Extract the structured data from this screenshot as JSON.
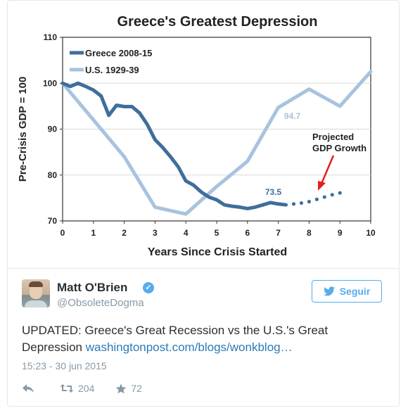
{
  "tweet": {
    "author_name": "Matt O'Brien",
    "handle": "@ObsoleteDogma",
    "follow_label": "Seguir",
    "text_before": "UPDATED: Greece's Great Recession vs the U.S.'s Great Depression ",
    "link_text": "washingtonpost.com/blogs/wonkblog…",
    "timestamp": "15:23 - 30 jun 2015",
    "retweet_count": "204",
    "like_count": "72"
  },
  "colors": {
    "greece": "#3f6e9a",
    "us": "#a7c3df",
    "twitter_blue": "#55acee",
    "arrow": "#e02020"
  },
  "icons": [
    "verified-icon",
    "bird-icon",
    "reply-icon",
    "retweet-icon",
    "star-icon"
  ],
  "chart_data": {
    "type": "line",
    "title": "Greece's Greatest Depression",
    "xlabel": "Years Since Crisis Started",
    "ylabel": "Pre-Crisis GDP = 100",
    "xlim": [
      0,
      10
    ],
    "ylim": [
      70,
      110
    ],
    "xticks": [
      0,
      1,
      2,
      3,
      4,
      5,
      6,
      7,
      8,
      9,
      10
    ],
    "yticks": [
      70,
      80,
      90,
      100,
      110
    ],
    "legend_position": "top-left",
    "series": [
      {
        "name": "Greece 2008-15",
        "x": [
          0,
          0.25,
          0.5,
          0.75,
          1.0,
          1.25,
          1.5,
          1.75,
          2.0,
          2.25,
          2.5,
          2.75,
          3.0,
          3.25,
          3.5,
          3.75,
          4.0,
          4.25,
          4.5,
          4.75,
          5.0,
          5.25,
          5.5,
          5.75,
          6.0,
          6.25,
          6.5,
          6.75,
          7.0,
          7.25
        ],
        "values": [
          100,
          99.3,
          100,
          99.3,
          98.5,
          97.2,
          93.0,
          95.2,
          94.9,
          94.9,
          93.5,
          91.0,
          87.7,
          86.0,
          84.0,
          81.8,
          78.7,
          77.8,
          76.3,
          75.2,
          74.6,
          73.5,
          73.2,
          73.0,
          72.7,
          73.0,
          73.5,
          74.0,
          73.7,
          73.5
        ]
      },
      {
        "name": "U.S. 1929-39",
        "x": [
          0,
          1,
          2,
          3,
          4,
          5,
          6,
          7,
          8,
          9,
          10
        ],
        "values": [
          100,
          92,
          84,
          73,
          71.5,
          77.5,
          83,
          94.7,
          98.7,
          95,
          102.5
        ]
      },
      {
        "name": "Projected GDP Growth",
        "x": [
          7.5,
          7.75,
          8.0,
          8.25,
          8.5,
          8.75,
          9.0
        ],
        "values": [
          73.7,
          73.9,
          74.2,
          74.7,
          75.2,
          75.7,
          76.1
        ]
      }
    ],
    "annotations": [
      {
        "text": "94.7",
        "x": 7,
        "y": 94.7
      },
      {
        "text": "73.5",
        "x": 7.25,
        "y": 73.5
      },
      {
        "text": "Projected",
        "x": 8.3,
        "y": 83
      },
      {
        "text": "GDP Growth",
        "x": 8.3,
        "y": 83
      }
    ]
  }
}
